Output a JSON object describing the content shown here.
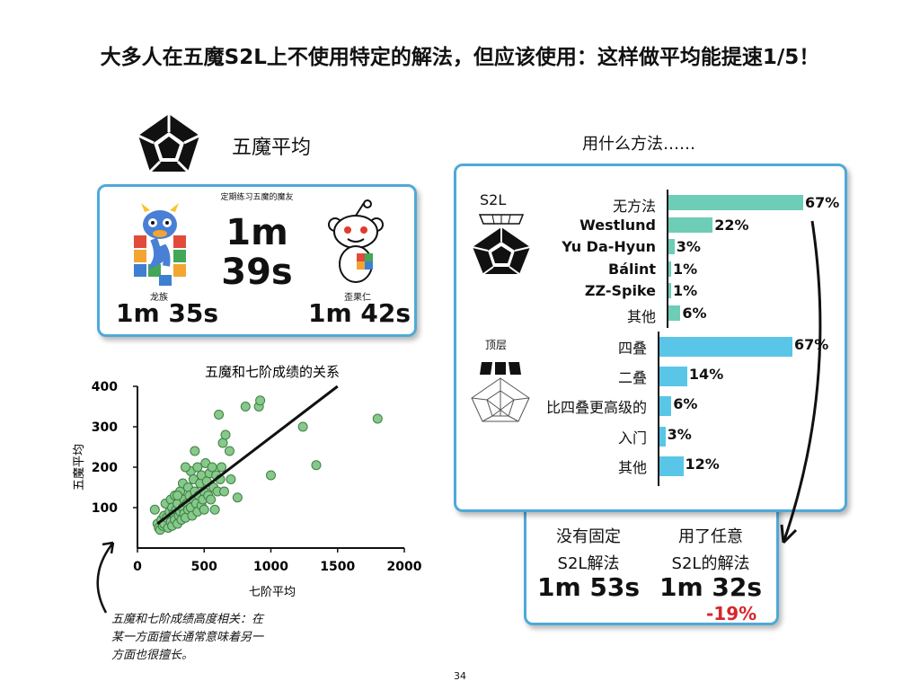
{
  "title": "大多人在五魔S2L上不使用特定的解法，但应该使用：这样做平均能提速1/5！",
  "left_header": {
    "label": "五魔平均"
  },
  "avg_card": {
    "caption": "定期练习五魔的魔友",
    "center_time_line1": "1m",
    "center_time_line2": "39s",
    "left_name": "龙族",
    "left_time": "1m 35s",
    "right_name": "歪果仁",
    "right_time": "1m 42s"
  },
  "right_header": {
    "label": "用什么方法……"
  },
  "bars_card": {
    "s2l_label": "S2L",
    "top_label": "顶层"
  },
  "compare_card": {
    "left_line1": "没有固定",
    "left_line2": "S2L解法",
    "left_time": "1m 53s",
    "right_line1": "用了任意",
    "right_line2": "S2L的解法",
    "right_time": "1m 32s",
    "delta": "-19%"
  },
  "annotation": {
    "line1": "五魔和七阶成绩高度相关：在",
    "line2": "某一方面擅长通常意味着另一",
    "line3": "方面也很擅长。"
  },
  "page_number": "34",
  "colors": {
    "card_border": "#4fa9d9",
    "s2l_bar": "#6ecdb6",
    "top_bar": "#59c6e8",
    "scatter_point": "#86c98a",
    "delta_red": "#d7262b"
  },
  "chart_data": [
    {
      "type": "bar",
      "orientation": "horizontal",
      "group": "S2L",
      "categories": [
        "无方法",
        "Westlund",
        "Yu Da-Hyun",
        "Bálint",
        "ZZ-Spike",
        "其他"
      ],
      "values": [
        67,
        22,
        3,
        1,
        1,
        6
      ],
      "value_labels": [
        "67%",
        "22%",
        "3%",
        "1%",
        "1%",
        "6%"
      ],
      "xlim": [
        0,
        67
      ]
    },
    {
      "type": "bar",
      "orientation": "horizontal",
      "group": "顶层",
      "categories": [
        "四叠",
        "二叠",
        "比四叠更高级的",
        "入门",
        "其他"
      ],
      "values": [
        67,
        14,
        6,
        3,
        12
      ],
      "value_labels": [
        "67%",
        "14%",
        "6%",
        "3%",
        "12%"
      ],
      "xlim": [
        0,
        67
      ]
    },
    {
      "type": "scatter",
      "title": "五魔和七阶成绩的关系",
      "xlabel": "七阶平均",
      "ylabel": "五魔平均",
      "xlim": [
        0,
        2000
      ],
      "ylim": [
        0,
        400
      ],
      "xticks": [
        "0",
        "500",
        "1000",
        "1500",
        "2000"
      ],
      "yticks": [
        "100",
        "200",
        "300",
        "400"
      ],
      "grid": false,
      "trendline": {
        "x": [
          150,
          1500
        ],
        "y": [
          60,
          400
        ]
      },
      "points": [
        [
          130,
          95
        ],
        [
          150,
          60
        ],
        [
          160,
          50
        ],
        [
          170,
          45
        ],
        [
          180,
          70
        ],
        [
          190,
          55
        ],
        [
          200,
          80
        ],
        [
          200,
          60
        ],
        [
          210,
          110
        ],
        [
          220,
          75
        ],
        [
          230,
          50
        ],
        [
          240,
          90
        ],
        [
          250,
          65
        ],
        [
          250,
          120
        ],
        [
          260,
          100
        ],
        [
          260,
          55
        ],
        [
          270,
          85
        ],
        [
          280,
          70
        ],
        [
          280,
          130
        ],
        [
          290,
          95
        ],
        [
          300,
          60
        ],
        [
          300,
          110
        ],
        [
          310,
          80
        ],
        [
          320,
          140
        ],
        [
          320,
          90
        ],
        [
          330,
          70
        ],
        [
          340,
          100
        ],
        [
          340,
          160
        ],
        [
          350,
          120
        ],
        [
          350,
          85
        ],
        [
          360,
          75
        ],
        [
          370,
          110
        ],
        [
          380,
          95
        ],
        [
          380,
          150
        ],
        [
          390,
          130
        ],
        [
          400,
          100
        ],
        [
          400,
          190
        ],
        [
          410,
          80
        ],
        [
          420,
          120
        ],
        [
          420,
          170
        ],
        [
          430,
          140
        ],
        [
          440,
          110
        ],
        [
          450,
          200
        ],
        [
          450,
          90
        ],
        [
          460,
          130
        ],
        [
          470,
          160
        ],
        [
          480,
          105
        ],
        [
          480,
          180
        ],
        [
          490,
          120
        ],
        [
          500,
          140
        ],
        [
          500,
          95
        ],
        [
          510,
          210
        ],
        [
          520,
          165
        ],
        [
          530,
          130
        ],
        [
          540,
          185
        ],
        [
          550,
          120
        ],
        [
          560,
          200
        ],
        [
          570,
          150
        ],
        [
          580,
          95
        ],
        [
          590,
          180
        ],
        [
          600,
          140
        ],
        [
          610,
          330
        ],
        [
          620,
          170
        ],
        [
          630,
          200
        ],
        [
          640,
          260
        ],
        [
          650,
          140
        ],
        [
          660,
          280
        ],
        [
          690,
          240
        ],
        [
          700,
          170
        ],
        [
          750,
          125
        ],
        [
          810,
          350
        ],
        [
          910,
          350
        ],
        [
          920,
          365
        ],
        [
          1000,
          180
        ],
        [
          1240,
          300
        ],
        [
          1340,
          205
        ],
        [
          1800,
          320
        ],
        [
          430,
          240
        ],
        [
          360,
          200
        ],
        [
          300,
          130
        ]
      ]
    }
  ]
}
